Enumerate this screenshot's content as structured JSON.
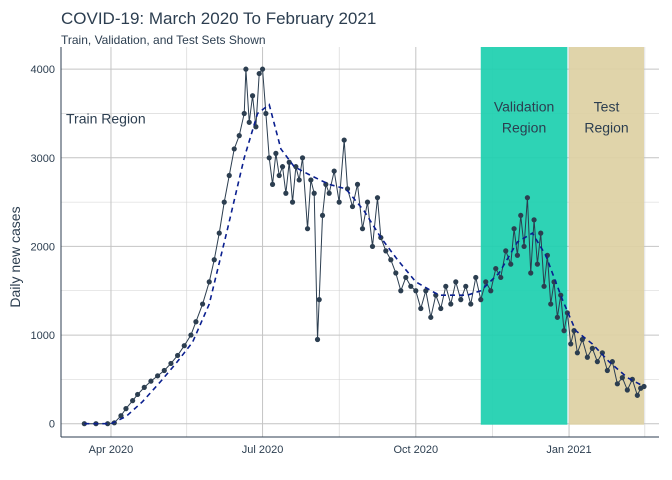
{
  "chart_data": {
    "type": "line",
    "title": "COVID-19: March 2020 To February 2021",
    "subtitle": "Train, Validation, and Test Sets Shown",
    "xlabel": "",
    "ylabel": "Daily new cases",
    "xlim": [
      "2020-03-02",
      "2021-02-24"
    ],
    "ylim": [
      -150,
      4250
    ],
    "x_ticks": [
      {
        "date": "2020-04-01",
        "label": "Apr 2020"
      },
      {
        "date": "2020-07-01",
        "label": "Jul 2020"
      },
      {
        "date": "2020-10-01",
        "label": "Oct 2020"
      },
      {
        "date": "2021-01-01",
        "label": "Jan 2021"
      }
    ],
    "y_ticks": [
      0,
      1000,
      2000,
      3000,
      4000
    ],
    "grid": true,
    "regions": [
      {
        "name": "train",
        "label_lines": [
          "Train Region"
        ],
        "start": "2020-03-16",
        "end": "2020-11-09",
        "color": "",
        "label_pos": [
          0.5,
          0.72
        ]
      },
      {
        "name": "validation",
        "label_lines": [
          "Validation",
          "Region"
        ],
        "start": "2020-11-09",
        "end": "2020-12-31",
        "color": "#1ccfaf",
        "label_pos": [
          3650,
          3400
        ]
      },
      {
        "name": "test",
        "label_lines": [
          "Test",
          "Region"
        ],
        "start": "2021-01-01",
        "end": "2021-02-15",
        "color": "#ddd0a3",
        "label_pos": [
          3650,
          3400
        ]
      }
    ],
    "series": [
      {
        "key": "actual",
        "style": "line+points",
        "color": "#2c3e50",
        "points": [
          [
            "2020-03-16",
            0
          ],
          [
            "2020-03-23",
            0
          ],
          [
            "2020-03-30",
            0
          ],
          [
            "2020-04-03",
            10
          ],
          [
            "2020-04-07",
            90
          ],
          [
            "2020-04-10",
            170
          ],
          [
            "2020-04-14",
            260
          ],
          [
            "2020-04-17",
            330
          ],
          [
            "2020-04-21",
            410
          ],
          [
            "2020-04-25",
            480
          ],
          [
            "2020-04-29",
            540
          ],
          [
            "2020-05-03",
            600
          ],
          [
            "2020-05-07",
            680
          ],
          [
            "2020-05-11",
            770
          ],
          [
            "2020-05-15",
            880
          ],
          [
            "2020-05-19",
            1000
          ],
          [
            "2020-05-22",
            1150
          ],
          [
            "2020-05-26",
            1350
          ],
          [
            "2020-05-30",
            1600
          ],
          [
            "2020-06-02",
            1850
          ],
          [
            "2020-06-05",
            2150
          ],
          [
            "2020-06-08",
            2500
          ],
          [
            "2020-06-11",
            2800
          ],
          [
            "2020-06-14",
            3100
          ],
          [
            "2020-06-17",
            3250
          ],
          [
            "2020-06-20",
            3500
          ],
          [
            "2020-06-21",
            4000
          ],
          [
            "2020-06-23",
            3400
          ],
          [
            "2020-06-25",
            3700
          ],
          [
            "2020-06-27",
            3350
          ],
          [
            "2020-06-29",
            3950
          ],
          [
            "2020-07-01",
            4000
          ],
          [
            "2020-07-03",
            3500
          ],
          [
            "2020-07-05",
            3000
          ],
          [
            "2020-07-07",
            2700
          ],
          [
            "2020-07-09",
            3050
          ],
          [
            "2020-07-11",
            2800
          ],
          [
            "2020-07-13",
            2900
          ],
          [
            "2020-07-15",
            2600
          ],
          [
            "2020-07-17",
            2950
          ],
          [
            "2020-07-19",
            2500
          ],
          [
            "2020-07-21",
            2900
          ],
          [
            "2020-07-23",
            2750
          ],
          [
            "2020-07-25",
            3000
          ],
          [
            "2020-07-28",
            2200
          ],
          [
            "2020-07-30",
            2750
          ],
          [
            "2020-08-01",
            2600
          ],
          [
            "2020-08-03",
            950
          ],
          [
            "2020-08-04",
            1400
          ],
          [
            "2020-08-06",
            2350
          ],
          [
            "2020-08-08",
            2700
          ],
          [
            "2020-08-10",
            2600
          ],
          [
            "2020-08-13",
            2850
          ],
          [
            "2020-08-16",
            2500
          ],
          [
            "2020-08-19",
            3200
          ],
          [
            "2020-08-21",
            2650
          ],
          [
            "2020-08-24",
            2450
          ],
          [
            "2020-08-27",
            2700
          ],
          [
            "2020-08-30",
            2200
          ],
          [
            "2020-09-02",
            2500
          ],
          [
            "2020-09-05",
            2000
          ],
          [
            "2020-09-08",
            2550
          ],
          [
            "2020-09-10",
            2100
          ],
          [
            "2020-09-13",
            1950
          ],
          [
            "2020-09-16",
            1850
          ],
          [
            "2020-09-19",
            1700
          ],
          [
            "2020-09-22",
            1500
          ],
          [
            "2020-09-25",
            1650
          ],
          [
            "2020-09-28",
            1550
          ],
          [
            "2020-10-01",
            1500
          ],
          [
            "2020-10-04",
            1300
          ],
          [
            "2020-10-07",
            1500
          ],
          [
            "2020-10-10",
            1200
          ],
          [
            "2020-10-13",
            1450
          ],
          [
            "2020-10-16",
            1300
          ],
          [
            "2020-10-19",
            1550
          ],
          [
            "2020-10-22",
            1350
          ],
          [
            "2020-10-25",
            1600
          ],
          [
            "2020-10-28",
            1400
          ],
          [
            "2020-10-31",
            1550
          ],
          [
            "2020-11-03",
            1350
          ],
          [
            "2020-11-06",
            1650
          ],
          [
            "2020-11-09",
            1400
          ],
          [
            "2020-11-12",
            1600
          ],
          [
            "2020-11-15",
            1500
          ],
          [
            "2020-11-18",
            1750
          ],
          [
            "2020-11-21",
            1650
          ],
          [
            "2020-11-24",
            1950
          ],
          [
            "2020-11-27",
            1800
          ],
          [
            "2020-11-29",
            2200
          ],
          [
            "2020-12-01",
            1900
          ],
          [
            "2020-12-03",
            2350
          ],
          [
            "2020-12-05",
            2000
          ],
          [
            "2020-12-07",
            2550
          ],
          [
            "2020-12-09",
            1700
          ],
          [
            "2020-12-11",
            2300
          ],
          [
            "2020-12-13",
            1800
          ],
          [
            "2020-12-15",
            2150
          ],
          [
            "2020-12-17",
            1550
          ],
          [
            "2020-12-19",
            1900
          ],
          [
            "2020-12-21",
            1350
          ],
          [
            "2020-12-23",
            1600
          ],
          [
            "2020-12-25",
            1200
          ],
          [
            "2020-12-27",
            1450
          ],
          [
            "2020-12-29",
            1050
          ],
          [
            "2020-12-31",
            1250
          ],
          [
            "2021-01-02",
            900
          ],
          [
            "2021-01-04",
            1050
          ],
          [
            "2021-01-06",
            800
          ],
          [
            "2021-01-09",
            950
          ],
          [
            "2021-01-12",
            750
          ],
          [
            "2021-01-15",
            850
          ],
          [
            "2021-01-18",
            700
          ],
          [
            "2021-01-21",
            800
          ],
          [
            "2021-01-24",
            600
          ],
          [
            "2021-01-27",
            700
          ],
          [
            "2021-01-30",
            450
          ],
          [
            "2021-02-02",
            520
          ],
          [
            "2021-02-05",
            380
          ],
          [
            "2021-02-08",
            500
          ],
          [
            "2021-02-11",
            320
          ],
          [
            "2021-02-13",
            400
          ],
          [
            "2021-02-15",
            420
          ]
        ]
      },
      {
        "key": "fitted",
        "style": "dashed",
        "color": "#0a1f8f",
        "points": [
          [
            "2020-03-16",
            0
          ],
          [
            "2020-04-01",
            0
          ],
          [
            "2020-04-10",
            80
          ],
          [
            "2020-04-20",
            250
          ],
          [
            "2020-05-01",
            480
          ],
          [
            "2020-05-10",
            680
          ],
          [
            "2020-05-20",
            920
          ],
          [
            "2020-05-30",
            1350
          ],
          [
            "2020-06-10",
            2200
          ],
          [
            "2020-06-20",
            3000
          ],
          [
            "2020-06-28",
            3500
          ],
          [
            "2020-07-05",
            3600
          ],
          [
            "2020-07-12",
            3100
          ],
          [
            "2020-07-20",
            2900
          ],
          [
            "2020-07-30",
            2800
          ],
          [
            "2020-08-10",
            2700
          ],
          [
            "2020-08-20",
            2650
          ],
          [
            "2020-08-31",
            2400
          ],
          [
            "2020-09-10",
            2100
          ],
          [
            "2020-09-20",
            1850
          ],
          [
            "2020-10-01",
            1600
          ],
          [
            "2020-10-15",
            1450
          ],
          [
            "2020-11-01",
            1450
          ],
          [
            "2020-11-09",
            1500
          ],
          [
            "2020-11-20",
            1700
          ],
          [
            "2020-12-01",
            2050
          ],
          [
            "2020-12-10",
            2150
          ],
          [
            "2020-12-18",
            1900
          ],
          [
            "2020-12-28",
            1400
          ],
          [
            "2021-01-05",
            1050
          ],
          [
            "2021-01-15",
            900
          ],
          [
            "2021-01-25",
            700
          ],
          [
            "2021-02-05",
            520
          ],
          [
            "2021-02-15",
            420
          ]
        ]
      }
    ]
  }
}
